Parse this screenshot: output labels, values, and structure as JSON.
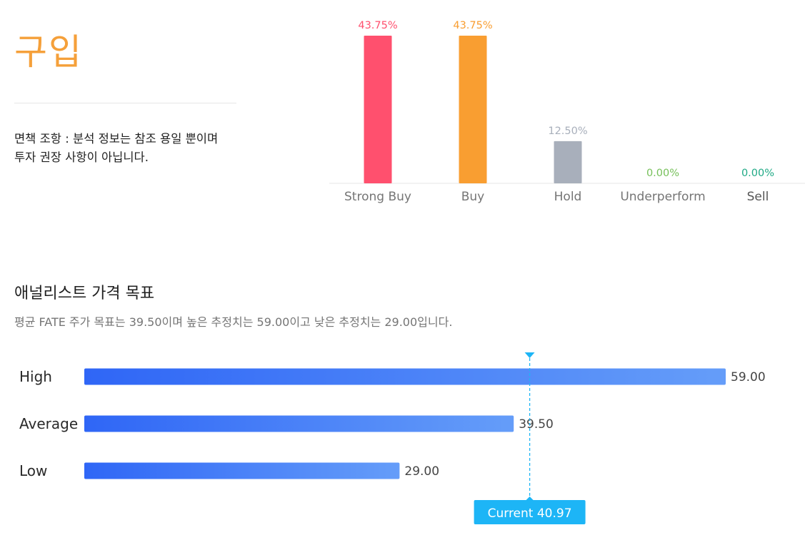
{
  "consensus": {
    "label": "구입",
    "disclaimer": "면책 조항 : 분석 정보는 참조 용일 뿐이며 투자 권장 사항이 아닙니다."
  },
  "price_target": {
    "title": "애널리스트 가격 목표",
    "summary": "평균 FATE 주가 목표는 39.50이며 높은 추정치는 59.00이고 낮은 추정치는 29.00입니다.",
    "current_label": "Current 40.97"
  },
  "colors": {
    "strong_buy": "#ff506e",
    "buy": "#f99e31",
    "hold": "#a8afbb",
    "underperform": "#76c05a",
    "sell": "#1fa985",
    "consensus": "#f5a03a",
    "bar_start": "#2f66f6",
    "bar_end": "#659df9",
    "current": "#1db5f6"
  },
  "chart_data": [
    {
      "type": "bar",
      "categories": [
        "Strong Buy",
        "Buy",
        "Hold",
        "Underperform",
        "Sell"
      ],
      "values": [
        43.75,
        43.75,
        12.5,
        0.0,
        0.0
      ],
      "data_labels": [
        "43.75%",
        "43.75%",
        "12.50%",
        "0.00%",
        "0.00%"
      ],
      "bar_colors": [
        "#ff506e",
        "#f99e31",
        "#a8afbb",
        "#76c05a",
        "#1fa985"
      ],
      "title": "",
      "xlabel": "",
      "ylabel": "",
      "ylim": [
        0,
        43.75
      ],
      "grid": false,
      "legend": "none"
    },
    {
      "type": "bar",
      "orientation": "horizontal",
      "categories": [
        "High",
        "Average",
        "Low"
      ],
      "values": [
        59.0,
        39.5,
        29.0
      ],
      "data_labels": [
        "59.00",
        "39.50",
        "29.00"
      ],
      "current_value": 40.97,
      "xlim": [
        0,
        59.0
      ],
      "title": "",
      "xlabel": "",
      "ylabel": "",
      "grid": false,
      "legend": "none"
    }
  ]
}
